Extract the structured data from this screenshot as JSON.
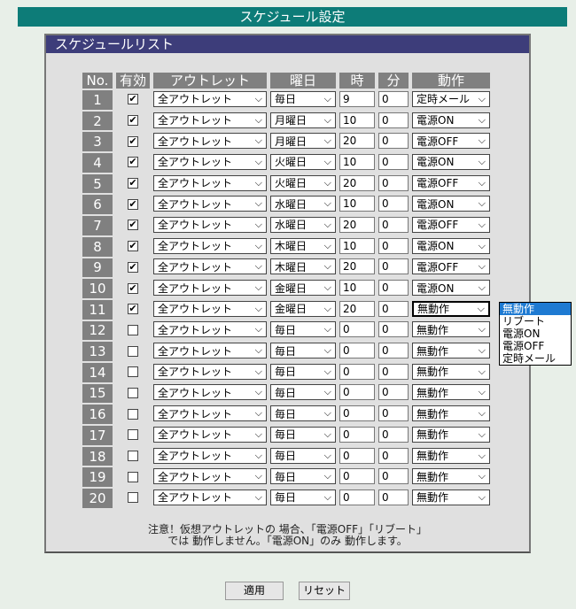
{
  "title": "スケジュール設定",
  "panel_title": "スケジュールリスト",
  "headers": [
    "No.",
    "有効",
    "アウトレット",
    "曜日",
    "時",
    "分",
    "動作"
  ],
  "rows": [
    {
      "no": "1",
      "enabled": true,
      "outlet": "全アウトレット",
      "day": "毎日",
      "hour": "9",
      "minute": "0",
      "action": "定時メール"
    },
    {
      "no": "2",
      "enabled": true,
      "outlet": "全アウトレット",
      "day": "月曜日",
      "hour": "10",
      "minute": "0",
      "action": "電源ON"
    },
    {
      "no": "3",
      "enabled": true,
      "outlet": "全アウトレット",
      "day": "月曜日",
      "hour": "20",
      "minute": "0",
      "action": "電源OFF"
    },
    {
      "no": "4",
      "enabled": true,
      "outlet": "全アウトレット",
      "day": "火曜日",
      "hour": "10",
      "minute": "0",
      "action": "電源ON"
    },
    {
      "no": "5",
      "enabled": true,
      "outlet": "全アウトレット",
      "day": "火曜日",
      "hour": "20",
      "minute": "0",
      "action": "電源OFF"
    },
    {
      "no": "6",
      "enabled": true,
      "outlet": "全アウトレット",
      "day": "水曜日",
      "hour": "10",
      "minute": "0",
      "action": "電源ON"
    },
    {
      "no": "7",
      "enabled": true,
      "outlet": "全アウトレット",
      "day": "水曜日",
      "hour": "20",
      "minute": "0",
      "action": "電源OFF"
    },
    {
      "no": "8",
      "enabled": true,
      "outlet": "全アウトレット",
      "day": "木曜日",
      "hour": "10",
      "minute": "0",
      "action": "電源ON"
    },
    {
      "no": "9",
      "enabled": true,
      "outlet": "全アウトレット",
      "day": "木曜日",
      "hour": "20",
      "minute": "0",
      "action": "電源OFF"
    },
    {
      "no": "10",
      "enabled": true,
      "outlet": "全アウトレット",
      "day": "金曜日",
      "hour": "10",
      "minute": "0",
      "action": "電源ON"
    },
    {
      "no": "11",
      "enabled": true,
      "outlet": "全アウトレット",
      "day": "金曜日",
      "hour": "20",
      "minute": "0",
      "action": "無動作"
    },
    {
      "no": "12",
      "enabled": false,
      "outlet": "全アウトレット",
      "day": "毎日",
      "hour": "0",
      "minute": "0",
      "action": "無動作"
    },
    {
      "no": "13",
      "enabled": false,
      "outlet": "全アウトレット",
      "day": "毎日",
      "hour": "0",
      "minute": "0",
      "action": "無動作"
    },
    {
      "no": "14",
      "enabled": false,
      "outlet": "全アウトレット",
      "day": "毎日",
      "hour": "0",
      "minute": "0",
      "action": "無動作"
    },
    {
      "no": "15",
      "enabled": false,
      "outlet": "全アウトレット",
      "day": "毎日",
      "hour": "0",
      "minute": "0",
      "action": "無動作"
    },
    {
      "no": "16",
      "enabled": false,
      "outlet": "全アウトレット",
      "day": "毎日",
      "hour": "0",
      "minute": "0",
      "action": "無動作"
    },
    {
      "no": "17",
      "enabled": false,
      "outlet": "全アウトレット",
      "day": "毎日",
      "hour": "0",
      "minute": "0",
      "action": "無動作"
    },
    {
      "no": "18",
      "enabled": false,
      "outlet": "全アウトレット",
      "day": "毎日",
      "hour": "0",
      "minute": "0",
      "action": "無動作"
    },
    {
      "no": "19",
      "enabled": false,
      "outlet": "全アウトレット",
      "day": "毎日",
      "hour": "0",
      "minute": "0",
      "action": "無動作"
    },
    {
      "no": "20",
      "enabled": false,
      "outlet": "全アウトレット",
      "day": "毎日",
      "hour": "0",
      "minute": "0",
      "action": "無動作"
    }
  ],
  "open_dropdown": {
    "row": "11",
    "options": [
      "無動作",
      "リブート",
      "電源ON",
      "電源OFF",
      "定時メール"
    ],
    "highlighted": "無動作"
  },
  "note_line1": "注意！仮想アウトレットの 場合、「電源OFF」「リブート」",
  "note_line2": "では 動作しません。「電源ON」のみ 動作します。",
  "buttons": {
    "apply": "適用",
    "reset": "リセット"
  },
  "colors": {
    "title_bar": "#0d7c78",
    "panel_header": "#3d3d7a",
    "highlight": "#1e7ad2"
  }
}
